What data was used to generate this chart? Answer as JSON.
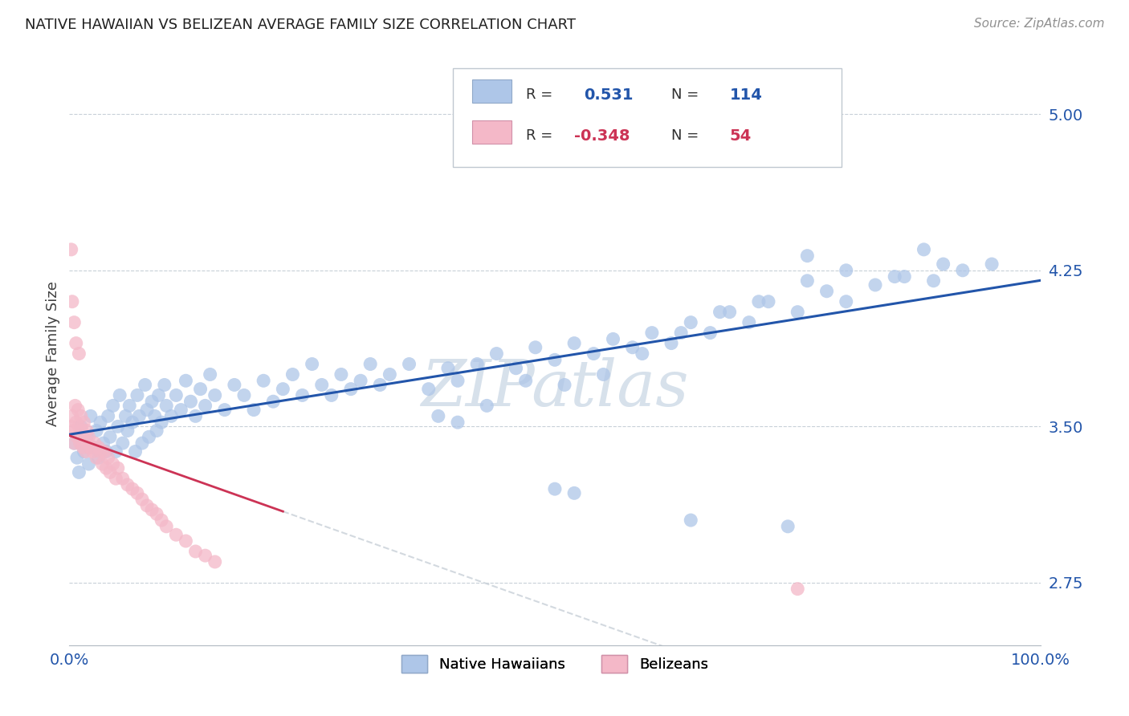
{
  "title": "NATIVE HAWAIIAN VS BELIZEAN AVERAGE FAMILY SIZE CORRELATION CHART",
  "source": "Source: ZipAtlas.com",
  "ylabel": "Average Family Size",
  "yticks": [
    2.75,
    3.5,
    4.25,
    5.0
  ],
  "xlim": [
    0.0,
    1.0
  ],
  "ylim": [
    2.45,
    5.25
  ],
  "blue_color": "#aec6e8",
  "pink_color": "#f4b8c8",
  "blue_line_color": "#2255aa",
  "pink_line_color": "#cc3355",
  "dash_color": "#c8d0d8",
  "watermark_color": "#d0dce8",
  "native_hawaiian_x": [
    0.005,
    0.008,
    0.01,
    0.012,
    0.015,
    0.018,
    0.02,
    0.022,
    0.025,
    0.028,
    0.03,
    0.032,
    0.035,
    0.038,
    0.04,
    0.042,
    0.045,
    0.048,
    0.05,
    0.052,
    0.055,
    0.058,
    0.06,
    0.062,
    0.065,
    0.068,
    0.07,
    0.072,
    0.075,
    0.078,
    0.08,
    0.082,
    0.085,
    0.088,
    0.09,
    0.092,
    0.095,
    0.098,
    0.1,
    0.105,
    0.11,
    0.115,
    0.12,
    0.125,
    0.13,
    0.135,
    0.14,
    0.145,
    0.15,
    0.16,
    0.17,
    0.18,
    0.19,
    0.2,
    0.21,
    0.22,
    0.23,
    0.24,
    0.25,
    0.26,
    0.27,
    0.28,
    0.29,
    0.3,
    0.31,
    0.32,
    0.33,
    0.35,
    0.37,
    0.39,
    0.4,
    0.42,
    0.44,
    0.46,
    0.48,
    0.5,
    0.52,
    0.54,
    0.56,
    0.58,
    0.6,
    0.62,
    0.64,
    0.66,
    0.68,
    0.7,
    0.72,
    0.75,
    0.78,
    0.8,
    0.83,
    0.86,
    0.89,
    0.92,
    0.95,
    0.38,
    0.4,
    0.43,
    0.47,
    0.51,
    0.55,
    0.59,
    0.63,
    0.67,
    0.71,
    0.76,
    0.8,
    0.85,
    0.9,
    0.76,
    0.5,
    0.52,
    0.64,
    0.74,
    0.88
  ],
  "native_hawaiian_y": [
    3.42,
    3.35,
    3.28,
    3.5,
    3.38,
    3.45,
    3.32,
    3.55,
    3.4,
    3.48,
    3.35,
    3.52,
    3.42,
    3.38,
    3.55,
    3.45,
    3.6,
    3.38,
    3.5,
    3.65,
    3.42,
    3.55,
    3.48,
    3.6,
    3.52,
    3.38,
    3.65,
    3.55,
    3.42,
    3.7,
    3.58,
    3.45,
    3.62,
    3.55,
    3.48,
    3.65,
    3.52,
    3.7,
    3.6,
    3.55,
    3.65,
    3.58,
    3.72,
    3.62,
    3.55,
    3.68,
    3.6,
    3.75,
    3.65,
    3.58,
    3.7,
    3.65,
    3.58,
    3.72,
    3.62,
    3.68,
    3.75,
    3.65,
    3.8,
    3.7,
    3.65,
    3.75,
    3.68,
    3.72,
    3.8,
    3.7,
    3.75,
    3.8,
    3.68,
    3.78,
    3.72,
    3.8,
    3.85,
    3.78,
    3.88,
    3.82,
    3.9,
    3.85,
    3.92,
    3.88,
    3.95,
    3.9,
    4.0,
    3.95,
    4.05,
    4.0,
    4.1,
    4.05,
    4.15,
    4.1,
    4.18,
    4.22,
    4.2,
    4.25,
    4.28,
    3.55,
    3.52,
    3.6,
    3.72,
    3.7,
    3.75,
    3.85,
    3.95,
    4.05,
    4.1,
    4.2,
    4.25,
    4.22,
    4.28,
    4.32,
    3.2,
    3.18,
    3.05,
    3.02,
    4.35
  ],
  "belizean_x": [
    0.002,
    0.003,
    0.004,
    0.005,
    0.006,
    0.007,
    0.008,
    0.009,
    0.01,
    0.011,
    0.012,
    0.013,
    0.014,
    0.015,
    0.016,
    0.017,
    0.018,
    0.019,
    0.02,
    0.022,
    0.024,
    0.026,
    0.028,
    0.03,
    0.032,
    0.034,
    0.036,
    0.038,
    0.04,
    0.042,
    0.045,
    0.048,
    0.05,
    0.055,
    0.06,
    0.065,
    0.07,
    0.075,
    0.08,
    0.085,
    0.09,
    0.095,
    0.1,
    0.11,
    0.12,
    0.13,
    0.14,
    0.15,
    0.002,
    0.003,
    0.005,
    0.007,
    0.01,
    0.75
  ],
  "belizean_y": [
    3.5,
    3.55,
    3.48,
    3.42,
    3.6,
    3.52,
    3.45,
    3.58,
    3.5,
    3.42,
    3.55,
    3.48,
    3.4,
    3.52,
    3.45,
    3.38,
    3.48,
    3.42,
    3.45,
    3.4,
    3.38,
    3.42,
    3.35,
    3.4,
    3.38,
    3.32,
    3.38,
    3.3,
    3.35,
    3.28,
    3.32,
    3.25,
    3.3,
    3.25,
    3.22,
    3.2,
    3.18,
    3.15,
    3.12,
    3.1,
    3.08,
    3.05,
    3.02,
    2.98,
    2.95,
    2.9,
    2.88,
    2.85,
    4.35,
    4.1,
    4.0,
    3.9,
    3.85,
    2.72
  ]
}
